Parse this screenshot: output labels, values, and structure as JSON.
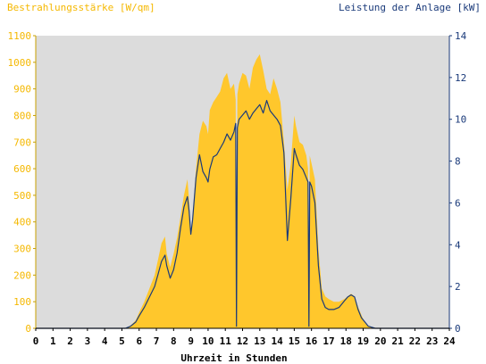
{
  "chart_data": {
    "type": "area",
    "left_axis_title": "Bestrahlungsstärke [W/qm]",
    "right_axis_title": "Leistung der Anlage [kW]",
    "xlabel": "Uhrzeit in Stunden",
    "x_ticks": [
      "0",
      "1",
      "2",
      "3",
      "4",
      "5",
      "6",
      "7",
      "8",
      "9",
      "10",
      "11",
      "12",
      "13",
      "14",
      "15",
      "16",
      "17",
      "18",
      "19",
      "20",
      "21",
      "22",
      "23",
      "24"
    ],
    "left_ticks": [
      "0",
      "100",
      "200",
      "300",
      "400",
      "500",
      "600",
      "700",
      "800",
      "900",
      "1000",
      "1100"
    ],
    "right_ticks": [
      "0",
      "2",
      "4",
      "6",
      "8",
      "10",
      "12",
      "14"
    ],
    "xlim": [
      0,
      24
    ],
    "ylim_left": [
      0,
      1100
    ],
    "ylim_right": [
      0,
      14
    ],
    "grid": false,
    "colors": {
      "plot_bg": "#dcdcdc",
      "irradiance_fill": "#ffc72c",
      "power_line": "#1a3a7a",
      "left_axis_text": "#f5b800",
      "right_axis_text": "#1a3a7a"
    },
    "series": [
      {
        "unit": "W/qm",
        "axis": "left",
        "style": "area",
        "x": [
          0,
          5.2,
          5.5,
          5.8,
          6.0,
          6.3,
          6.6,
          6.9,
          7.1,
          7.3,
          7.5,
          7.6,
          7.8,
          8.0,
          8.2,
          8.4,
          8.6,
          8.8,
          8.9,
          9.0,
          9.1,
          9.3,
          9.5,
          9.7,
          9.9,
          10.0,
          10.1,
          10.3,
          10.5,
          10.7,
          10.9,
          11.1,
          11.3,
          11.5,
          11.6,
          11.65,
          11.7,
          11.8,
          12.0,
          12.2,
          12.4,
          12.6,
          12.8,
          13.0,
          13.2,
          13.4,
          13.6,
          13.8,
          14.0,
          14.2,
          14.4,
          14.6,
          14.8,
          15.0,
          15.1,
          15.3,
          15.5,
          15.7,
          15.8,
          15.85,
          15.9,
          16.0,
          16.2,
          16.4,
          16.6,
          16.8,
          17.0,
          17.3,
          17.6,
          17.9,
          18.1,
          18.3,
          18.5,
          18.7,
          18.9,
          19.1,
          19.3,
          19.5,
          19.7,
          19.9,
          20.2,
          24
        ],
        "values": [
          0,
          0,
          10,
          30,
          60,
          100,
          150,
          200,
          260,
          320,
          345,
          280,
          230,
          280,
          340,
          420,
          500,
          560,
          480,
          350,
          420,
          600,
          730,
          780,
          760,
          730,
          820,
          850,
          870,
          890,
          940,
          960,
          900,
          920,
          860,
          100,
          880,
          920,
          960,
          950,
          900,
          980,
          1010,
          1030,
          970,
          900,
          880,
          940,
          900,
          850,
          700,
          520,
          620,
          800,
          760,
          700,
          690,
          650,
          600,
          100,
          650,
          620,
          560,
          300,
          150,
          120,
          110,
          100,
          100,
          110,
          120,
          130,
          120,
          80,
          50,
          20,
          10,
          5,
          0,
          0,
          0,
          0
        ]
      },
      {
        "unit": "kW",
        "axis": "right",
        "style": "line",
        "x": [
          0,
          5.2,
          5.5,
          5.8,
          6.0,
          6.3,
          6.6,
          6.9,
          7.1,
          7.3,
          7.5,
          7.6,
          7.8,
          8.0,
          8.2,
          8.4,
          8.6,
          8.8,
          8.9,
          9.0,
          9.1,
          9.3,
          9.5,
          9.7,
          9.9,
          10.0,
          10.1,
          10.3,
          10.5,
          10.7,
          10.9,
          11.1,
          11.3,
          11.5,
          11.6,
          11.65,
          11.7,
          11.8,
          12.0,
          12.2,
          12.4,
          12.6,
          12.8,
          13.0,
          13.2,
          13.4,
          13.6,
          13.8,
          14.0,
          14.2,
          14.4,
          14.6,
          14.8,
          15.0,
          15.1,
          15.3,
          15.5,
          15.7,
          15.8,
          15.85,
          15.9,
          16.0,
          16.2,
          16.4,
          16.6,
          16.8,
          17.0,
          17.3,
          17.6,
          17.9,
          18.1,
          18.3,
          18.5,
          18.7,
          18.9,
          19.1,
          19.3,
          19.5,
          19.7,
          19.9,
          20.2,
          24
        ],
        "values": [
          0,
          0,
          0.1,
          0.3,
          0.6,
          1.0,
          1.5,
          2.0,
          2.6,
          3.2,
          3.5,
          3.0,
          2.4,
          2.8,
          3.6,
          4.8,
          5.8,
          6.3,
          5.6,
          4.5,
          5.2,
          7.2,
          8.3,
          7.5,
          7.2,
          7.0,
          7.6,
          8.2,
          8.3,
          8.6,
          8.9,
          9.3,
          9.0,
          9.4,
          9.8,
          0.1,
          9.6,
          10.0,
          10.2,
          10.4,
          10.0,
          10.3,
          10.5,
          10.7,
          10.3,
          10.9,
          10.4,
          10.2,
          10.0,
          9.7,
          8.4,
          4.2,
          6.2,
          8.6,
          8.3,
          7.8,
          7.6,
          7.2,
          7.0,
          0.1,
          7.0,
          6.8,
          6.0,
          3.0,
          1.4,
          1.0,
          0.9,
          0.9,
          1.0,
          1.3,
          1.5,
          1.6,
          1.5,
          0.9,
          0.5,
          0.3,
          0.1,
          0.05,
          0,
          0,
          0,
          0
        ]
      }
    ]
  }
}
